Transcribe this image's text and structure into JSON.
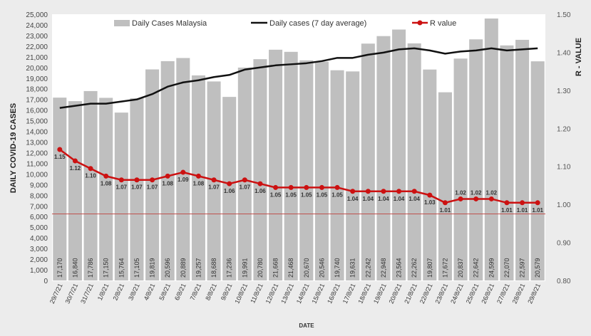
{
  "chart_data": {
    "type": "bar",
    "title": "",
    "xlabel": "DATE",
    "ylabel": "DAILY COVID-19 CASES",
    "y2label": "R - VALUE",
    "ylim": [
      0,
      25000
    ],
    "y2lim": [
      0.8,
      1.5
    ],
    "yticks": [
      "0",
      "1,000",
      "2,000",
      "3,000",
      "4,000",
      "5,000",
      "6,000",
      "7,000",
      "8,000",
      "9,000",
      "10,000",
      "11,000",
      "12,000",
      "13,000",
      "14,000",
      "15,000",
      "16,000",
      "17,000",
      "18,000",
      "19,000",
      "20,000",
      "21,000",
      "22,000",
      "23,000",
      "24,000",
      "25,000"
    ],
    "y2ticks": [
      "0.80",
      "0.90",
      "1.00",
      "1.10",
      "1.20",
      "1.30",
      "1.40",
      "1.50"
    ],
    "legend_position": "top",
    "categories": [
      "29/7/21",
      "30/7/21",
      "31/7/21",
      "1/8/21",
      "2/8/21",
      "3/8/21",
      "4/8/21",
      "5/8/21",
      "6/8/21",
      "7/8/21",
      "8/8/21",
      "9/8/21",
      "10/8/21",
      "11/8/21",
      "12/8/21",
      "13/8/21",
      "14/8/21",
      "15/8/21",
      "16/8/21",
      "17/8/21",
      "18/8/21",
      "19/8/21",
      "20/8/21",
      "21/8/21",
      "22/8/21",
      "23/8/21",
      "24/8/21",
      "25/8/21",
      "26/8/21",
      "27/8/21",
      "28/8/21",
      "29/8/21"
    ],
    "series": [
      {
        "name": "Daily Cases Malaysia",
        "type": "bar",
        "axis": "left",
        "color": "#bfbfbf",
        "values": [
          17170,
          16840,
          17786,
          17150,
          15764,
          17105,
          19819,
          20596,
          20889,
          19257,
          18688,
          17236,
          19991,
          20780,
          21668,
          21468,
          20670,
          20546,
          19740,
          19631,
          22242,
          22948,
          23564,
          22262,
          19807,
          17672,
          20837,
          22642,
          24599,
          22070,
          22597,
          20579
        ],
        "labels": [
          "17,170",
          "16,840",
          "17,786",
          "17,150",
          "15,764",
          "17,105",
          "19,819",
          "20,596",
          "20,889",
          "19,257",
          "18,688",
          "17,236",
          "19,991",
          "20,780",
          "21,668",
          "21,468",
          "20,670",
          "20,546",
          "19,740",
          "19,631",
          "22,242",
          "22,948",
          "23,564",
          "22,262",
          "19,807",
          "17,672",
          "20,837",
          "22,642",
          "24,599",
          "22,070",
          "22,597",
          "20,579"
        ]
      },
      {
        "name": "Daily cases (7 day average)",
        "type": "line",
        "axis": "left",
        "color": "#111111",
        "values": [
          16200,
          16400,
          16600,
          16600,
          16800,
          17000,
          17500,
          18200,
          18600,
          18800,
          19100,
          19300,
          19800,
          20000,
          20200,
          20300,
          20400,
          20600,
          20900,
          20900,
          21200,
          21400,
          21700,
          21800,
          21600,
          21300,
          21500,
          21600,
          21800,
          21600,
          21700,
          21800
        ]
      },
      {
        "name": "R value",
        "type": "line",
        "axis": "right",
        "color": "#cc1111",
        "values": [
          1.15,
          1.12,
          1.1,
          1.08,
          1.07,
          1.07,
          1.07,
          1.08,
          1.09,
          1.08,
          1.07,
          1.06,
          1.07,
          1.06,
          1.05,
          1.05,
          1.05,
          1.05,
          1.05,
          1.04,
          1.04,
          1.04,
          1.04,
          1.04,
          1.03,
          1.01,
          1.02,
          1.02,
          1.02,
          1.01,
          1.01,
          1.01
        ],
        "labels": [
          "1.15",
          "1.12",
          "1.10",
          "1.08",
          "1.07",
          "1.07",
          "1.07",
          "1.08",
          "1.09",
          "1.08",
          "1.07",
          "1.06",
          "1.07",
          "1.06",
          "1.05",
          "1.05",
          "1.05",
          "1.05",
          "1.05",
          "1.04",
          "1.04",
          "1.04",
          "1.04",
          "1.04",
          "1.03",
          "1.01",
          "1.02",
          "1.02",
          "1.02",
          "1.01",
          "1.01",
          "1.01"
        ]
      }
    ],
    "reference_line": {
      "axis": "right",
      "value": 0.975,
      "color": "#c0504d"
    }
  }
}
